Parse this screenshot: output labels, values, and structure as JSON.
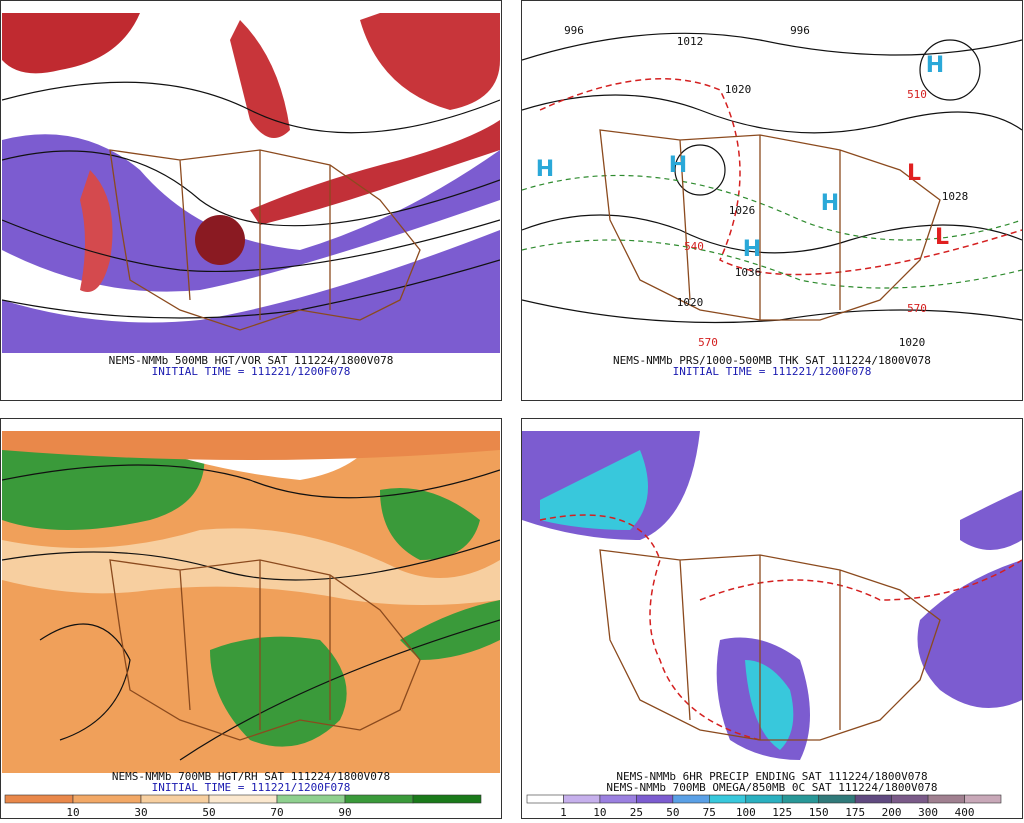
{
  "panels": [
    {
      "caption": "NEMS-NMMb 500MB HGT/VOR SAT 111224/1800V078",
      "initial_time": "INITIAL TIME = 111221/1200F078"
    },
    {
      "caption": "NEMS-NMMb PRS/1000-500MB THK SAT 111224/1800V078",
      "initial_time": "INITIAL TIME = 111221/1200F078",
      "labels": [
        "996",
        "1012",
        "996",
        "1020",
        "1026",
        "1036",
        "1028",
        "1020",
        "1020",
        "H",
        "H",
        "H",
        "H",
        "H",
        "L",
        "L",
        "510",
        "540",
        "570",
        "570"
      ]
    },
    {
      "caption": "NEMS-NMMb 700MB HGT/RH SAT 111224/1800V078",
      "initial_time": "INITIAL TIME = 111221/1200F078",
      "colorbar": [
        10,
        30,
        50,
        70,
        90
      ]
    },
    {
      "caption": "NEMS-NMMb 6HR PRECIP ENDING SAT 111224/1800V078",
      "subcaption": "NEMS-NMMb 700MB OMEGA/850MB 0C SAT 111224/1800V078",
      "colorbar": [
        1,
        10,
        25,
        50,
        75,
        100,
        125,
        150,
        175,
        200,
        300,
        400
      ]
    }
  ]
}
